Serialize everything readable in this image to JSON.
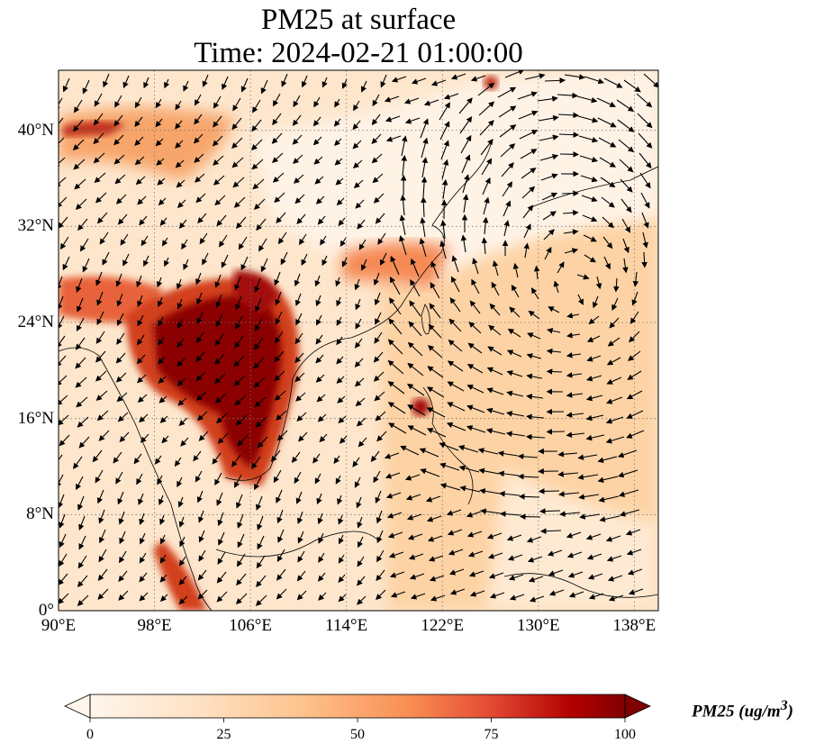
{
  "title": {
    "line1": "PM25 at surface",
    "line2": "Time: 2024-02-21 01:00:00"
  },
  "map": {
    "extent": {
      "lon": [
        90,
        140
      ],
      "lat": [
        0,
        45
      ]
    },
    "x_ticks": [
      {
        "lon": 90,
        "label": "90°E"
      },
      {
        "lon": 98,
        "label": "98°E"
      },
      {
        "lon": 106,
        "label": "106°E"
      },
      {
        "lon": 114,
        "label": "114°E"
      },
      {
        "lon": 122,
        "label": "122°E"
      },
      {
        "lon": 130,
        "label": "130°E"
      },
      {
        "lon": 138,
        "label": "138°E"
      }
    ],
    "y_ticks": [
      {
        "lat": 0,
        "label": "0°"
      },
      {
        "lat": 8,
        "label": "8°N"
      },
      {
        "lat": 16,
        "label": "16°N"
      },
      {
        "lat": 24,
        "label": "24°N"
      },
      {
        "lat": 32,
        "label": "32°N"
      },
      {
        "lat": 40,
        "label": "40°N"
      }
    ],
    "gridlines": "dotted"
  },
  "colorbar": {
    "label": "PM25 (ug/m",
    "label_sup": "3",
    "label_end": ")",
    "range": [
      0,
      100
    ],
    "ticks": [
      "0",
      "25",
      "50",
      "75",
      "100"
    ],
    "colormap": [
      "#fff5eb",
      "#fdd7a8",
      "#fdae6b",
      "#f16913",
      "#d94801",
      "#a50f15",
      "#7f0000"
    ],
    "extend": "both"
  }
}
